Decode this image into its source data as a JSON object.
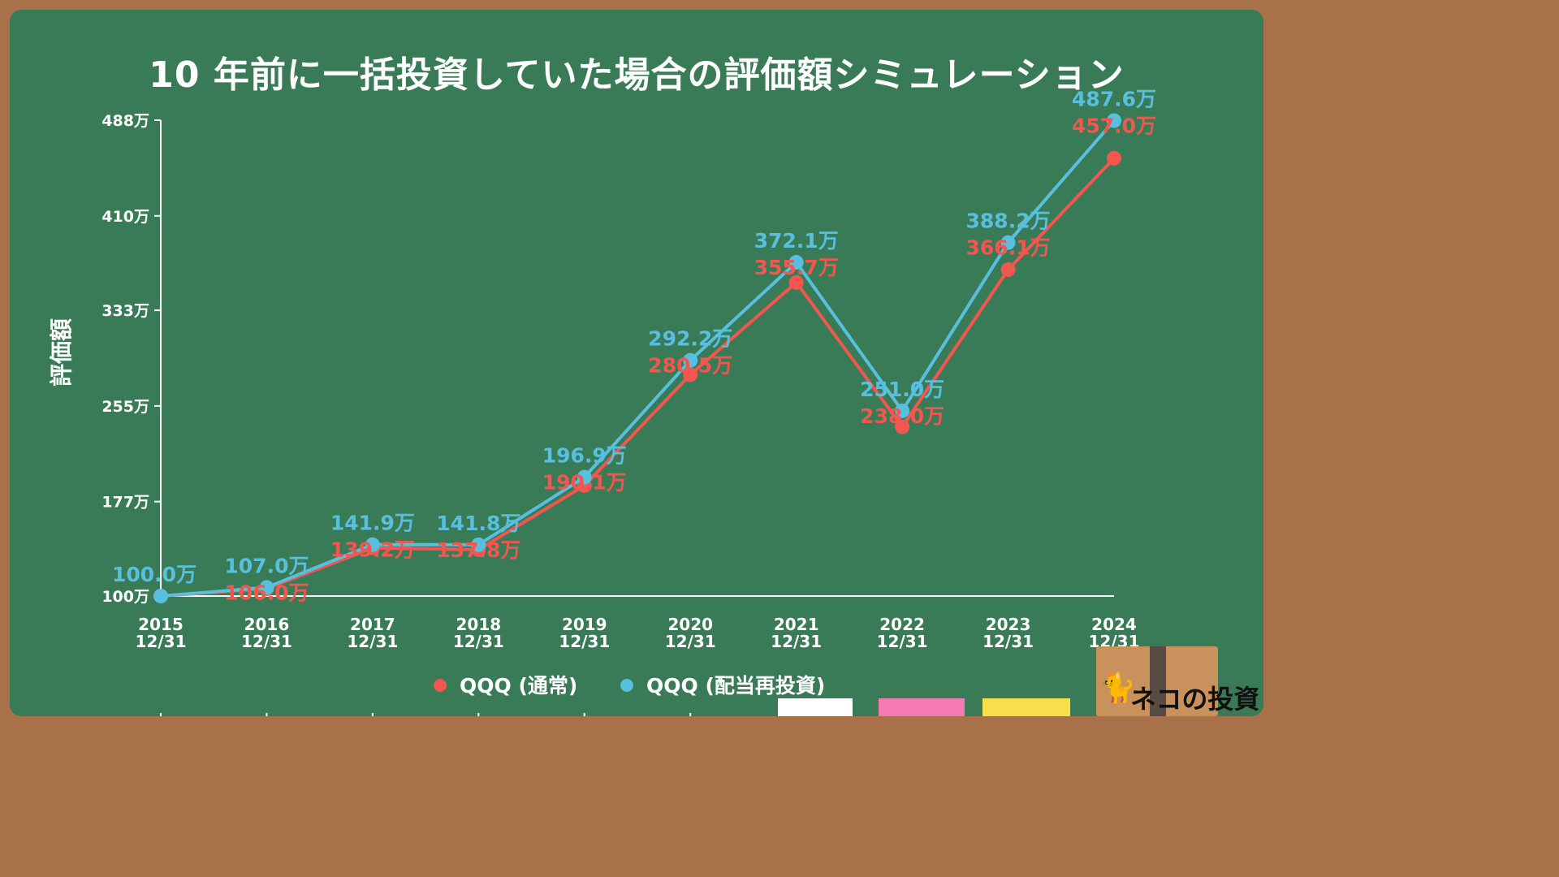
{
  "chart_data": {
    "type": "line",
    "title": "10 年前に一括投資していた場合の評価額シミュレーション",
    "ylabel": "評価額",
    "ylim": [
      100,
      488
    ],
    "y_ticks": [
      "100万",
      "177万",
      "255万",
      "333万",
      "410万",
      "488万"
    ],
    "y_tick_values": [
      100,
      177,
      255,
      333,
      410,
      488
    ],
    "categories": [
      [
        "2015",
        "12/31"
      ],
      [
        "2016",
        "12/31"
      ],
      [
        "2017",
        "12/31"
      ],
      [
        "2018",
        "12/31"
      ],
      [
        "2019",
        "12/31"
      ],
      [
        "2020",
        "12/31"
      ],
      [
        "2021",
        "12/31"
      ],
      [
        "2022",
        "12/31"
      ],
      [
        "2023",
        "12/31"
      ],
      [
        "2024",
        "12/31"
      ]
    ],
    "legend_placement": "bottom-center",
    "series": [
      {
        "name": "QQQ (通常)",
        "color": "#f2564f",
        "values": [
          100.0,
          106.0,
          139.2,
          137.8,
          190.1,
          280.5,
          355.7,
          238.0,
          366.1,
          457.0
        ],
        "labels": [
          "",
          "106.0万",
          "139.2万",
          "137.8万",
          "190.1万",
          "280.5万",
          "355.7万",
          "238.0万",
          "366.1万",
          "457.0万"
        ]
      },
      {
        "name": "QQQ (配当再投資)",
        "color": "#58bfde",
        "values": [
          100.0,
          107.0,
          141.9,
          141.8,
          196.9,
          292.2,
          372.1,
          251.0,
          388.2,
          487.6
        ],
        "labels": [
          "100.0万",
          "107.0万",
          "141.9万",
          "141.8万",
          "196.9万",
          "292.2万",
          "372.1万",
          "251.0万",
          "388.2万",
          "487.6万"
        ]
      }
    ]
  },
  "logo": {
    "text": "ネコの投資",
    "icon": "black-cat-icon"
  }
}
